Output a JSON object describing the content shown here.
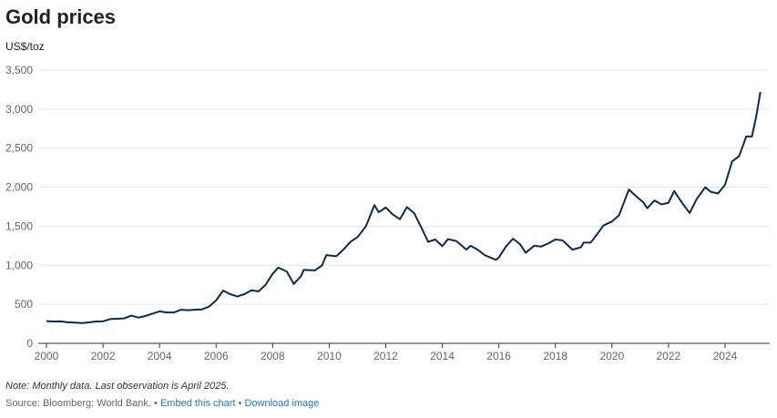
{
  "chart_data": {
    "type": "line",
    "title": "Gold prices",
    "subtitle": "US$/toz",
    "note": "Note: Monthly data. Last observation is April 2025.",
    "source": "Source: Bloomberg; World Bank.",
    "links": [
      "Embed this chart",
      "Download image"
    ],
    "x": [
      2000,
      2000.25,
      2000.5,
      2000.75,
      2001,
      2001.25,
      2001.5,
      2001.75,
      2002,
      2002.25,
      2002.5,
      2002.75,
      2003,
      2003.25,
      2003.5,
      2003.75,
      2004,
      2004.25,
      2004.5,
      2004.75,
      2005,
      2005.25,
      2005.5,
      2005.75,
      2006,
      2006.25,
      2006.5,
      2006.75,
      2007,
      2007.25,
      2007.5,
      2007.75,
      2008,
      2008.2,
      2008.5,
      2008.75,
      2009,
      2009.1,
      2009.5,
      2009.75,
      2009.9,
      2010.25,
      2010.5,
      2010.75,
      2011,
      2011.3,
      2011.6,
      2011.75,
      2012,
      2012.25,
      2012.5,
      2012.75,
      2013,
      2013.25,
      2013.5,
      2013.75,
      2014,
      2014.2,
      2014.5,
      2014.85,
      2015,
      2015.25,
      2015.5,
      2015.9,
      2016,
      2016.25,
      2016.5,
      2016.75,
      2016.95,
      2017.25,
      2017.5,
      2017.75,
      2018,
      2018.25,
      2018.6,
      2018.9,
      2019,
      2019.25,
      2019.5,
      2019.7,
      2020,
      2020.25,
      2020.6,
      2020.9,
      2021.1,
      2021.25,
      2021.5,
      2021.75,
      2022,
      2022.2,
      2022.5,
      2022.75,
      2023,
      2023.3,
      2023.5,
      2023.75,
      2024,
      2024.25,
      2024.5,
      2024.75,
      2024.95,
      2025.1,
      2025.25
    ],
    "series": [
      {
        "name": "Gold price",
        "color": "#0d2a4a",
        "values": [
          285,
          280,
          282,
          270,
          265,
          260,
          268,
          280,
          282,
          310,
          315,
          320,
          355,
          330,
          350,
          380,
          410,
          395,
          395,
          430,
          425,
          430,
          435,
          470,
          550,
          675,
          630,
          600,
          630,
          680,
          665,
          750,
          890,
          970,
          920,
          760,
          860,
          940,
          935,
          1000,
          1130,
          1115,
          1200,
          1300,
          1360,
          1500,
          1770,
          1680,
          1740,
          1650,
          1590,
          1745,
          1670,
          1490,
          1300,
          1330,
          1245,
          1335,
          1310,
          1200,
          1250,
          1200,
          1130,
          1070,
          1100,
          1240,
          1340,
          1270,
          1160,
          1250,
          1240,
          1280,
          1330,
          1320,
          1200,
          1230,
          1290,
          1290,
          1410,
          1510,
          1560,
          1640,
          1970,
          1870,
          1810,
          1730,
          1830,
          1780,
          1800,
          1950,
          1790,
          1670,
          1850,
          2000,
          1940,
          1920,
          2030,
          2330,
          2400,
          2650,
          2650,
          2900,
          3220
        ]
      }
    ],
    "xlim": [
      1999.71,
      2025.58
    ],
    "xticks": [
      2000,
      2002,
      2004,
      2006,
      2008,
      2010,
      2012,
      2014,
      2016,
      2018,
      2020,
      2022,
      2024
    ],
    "ylim": [
      0,
      3500
    ],
    "yticks": [
      0,
      500,
      {
        "value": 1000,
        "label": "1,000"
      },
      {
        "value": 1500,
        "label": "1,500"
      },
      {
        "value": 2000,
        "label": "2,000"
      },
      {
        "value": 2500,
        "label": "2,500"
      },
      {
        "value": 3000,
        "label": "3,000"
      },
      {
        "value": 3500,
        "label": "3,500"
      }
    ],
    "grid": true
  }
}
